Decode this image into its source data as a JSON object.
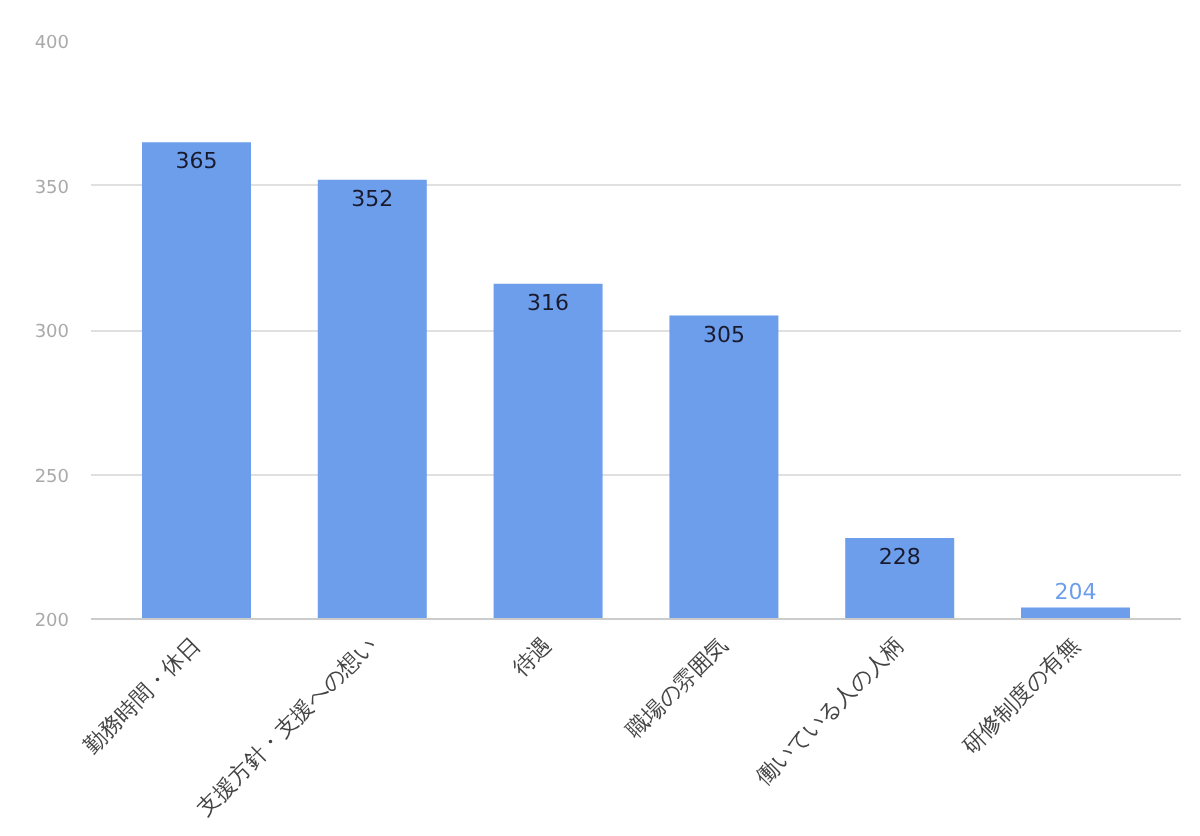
{
  "chart_data": {
    "type": "bar",
    "categories": [
      "勤務時間・休日",
      "支援方針・支援への想い",
      "待遇",
      "職場の雰囲気",
      "働いている人の人柄",
      "研修制度の有無"
    ],
    "values": [
      365,
      352,
      316,
      305,
      228,
      204
    ],
    "color": "#6d9eeb",
    "ylim": [
      200,
      400
    ],
    "yticks": [
      200,
      250,
      300,
      350,
      400
    ],
    "grid": "y",
    "data_labels": true
  }
}
